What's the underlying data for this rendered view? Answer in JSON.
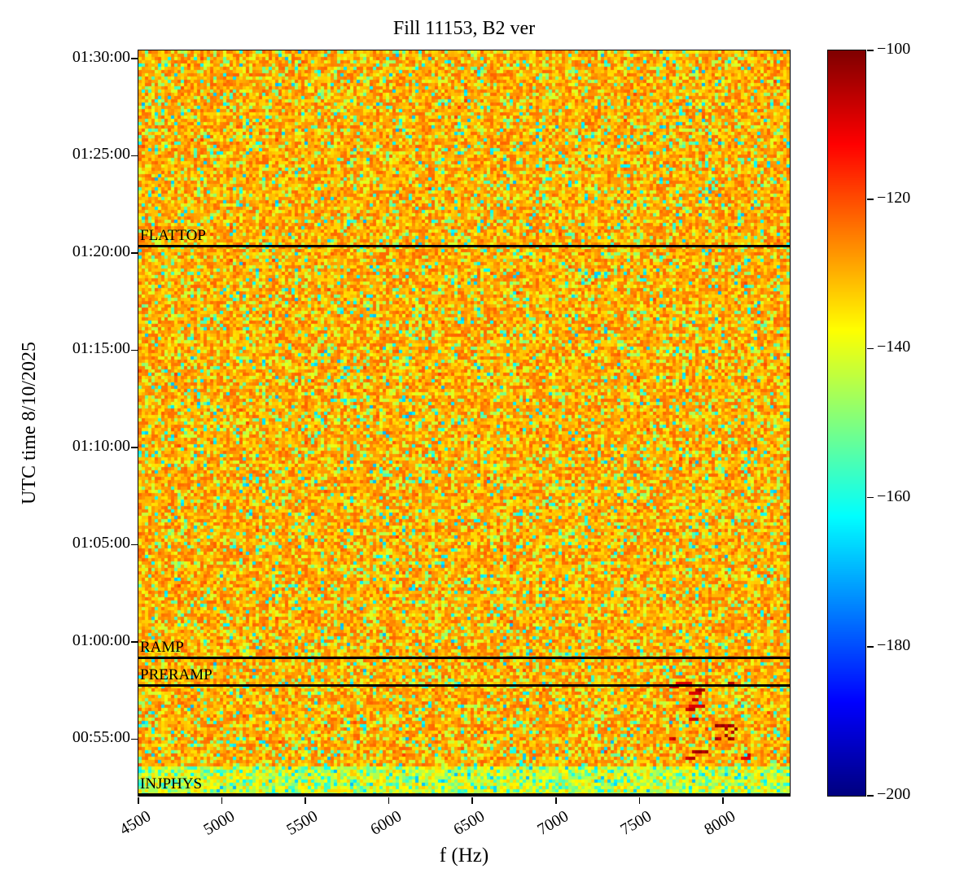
{
  "chart_data": {
    "type": "heatmap",
    "title": "Fill 11153, B2 ver",
    "xlabel": "f (Hz)",
    "ylabel": "UTC time 8/10/2025",
    "x_range_hz": [
      4500,
      8400
    ],
    "x_tick_values": [
      4500,
      5000,
      5500,
      6000,
      6500,
      7000,
      7500,
      8000
    ],
    "x_tick_labels": [
      "4500",
      "5000",
      "5500",
      "6000",
      "6500",
      "7000",
      "7500",
      "8000"
    ],
    "y_time_range": [
      "00:52:05",
      "01:30:25"
    ],
    "y_tick_labels": [
      "01:30:00",
      "01:25:00",
      "01:20:00",
      "01:15:00",
      "01:10:00",
      "01:05:00",
      "01:00:00",
      "00:55:00"
    ],
    "grid": false,
    "colormap": "jet",
    "annotation_line_color": "#000000",
    "colorbar": {
      "min_db": -200,
      "max_db": -100,
      "tick_values": [
        -100,
        -120,
        -140,
        -160,
        -180,
        -200
      ],
      "tick_labels": [
        "−100",
        "−120",
        "−140",
        "−160",
        "−180",
        "−200"
      ]
    },
    "background_noise": {
      "typical_db": -131,
      "range_db": [
        -145,
        -120
      ],
      "description": "yellow-orange broadband noise floor with scattered green/cyan speckles"
    },
    "annotations": [
      {
        "label": "FLATTOP",
        "time": "01:20:20"
      },
      {
        "label": "RAMP",
        "time": "00:59:10"
      },
      {
        "label": "PRERAMP",
        "time": "00:57:45"
      },
      {
        "label": "INJPHYS",
        "time": "00:52:10"
      }
    ],
    "features": [
      {
        "name": "bright-dashes",
        "f_hz": [
          7680,
          8160
        ],
        "time": [
          "00:53:50",
          "00:57:55"
        ],
        "level_db": -105,
        "description": "intermittent bright/dark red horizontal dashes before the ramp, densest near 8000 Hz around 00:55"
      },
      {
        "name": "low-level-band",
        "time": [
          "00:52:05",
          "00:53:35"
        ],
        "level_db": -148,
        "description": "greener low-amplitude band at the very start of the fill"
      }
    ]
  }
}
